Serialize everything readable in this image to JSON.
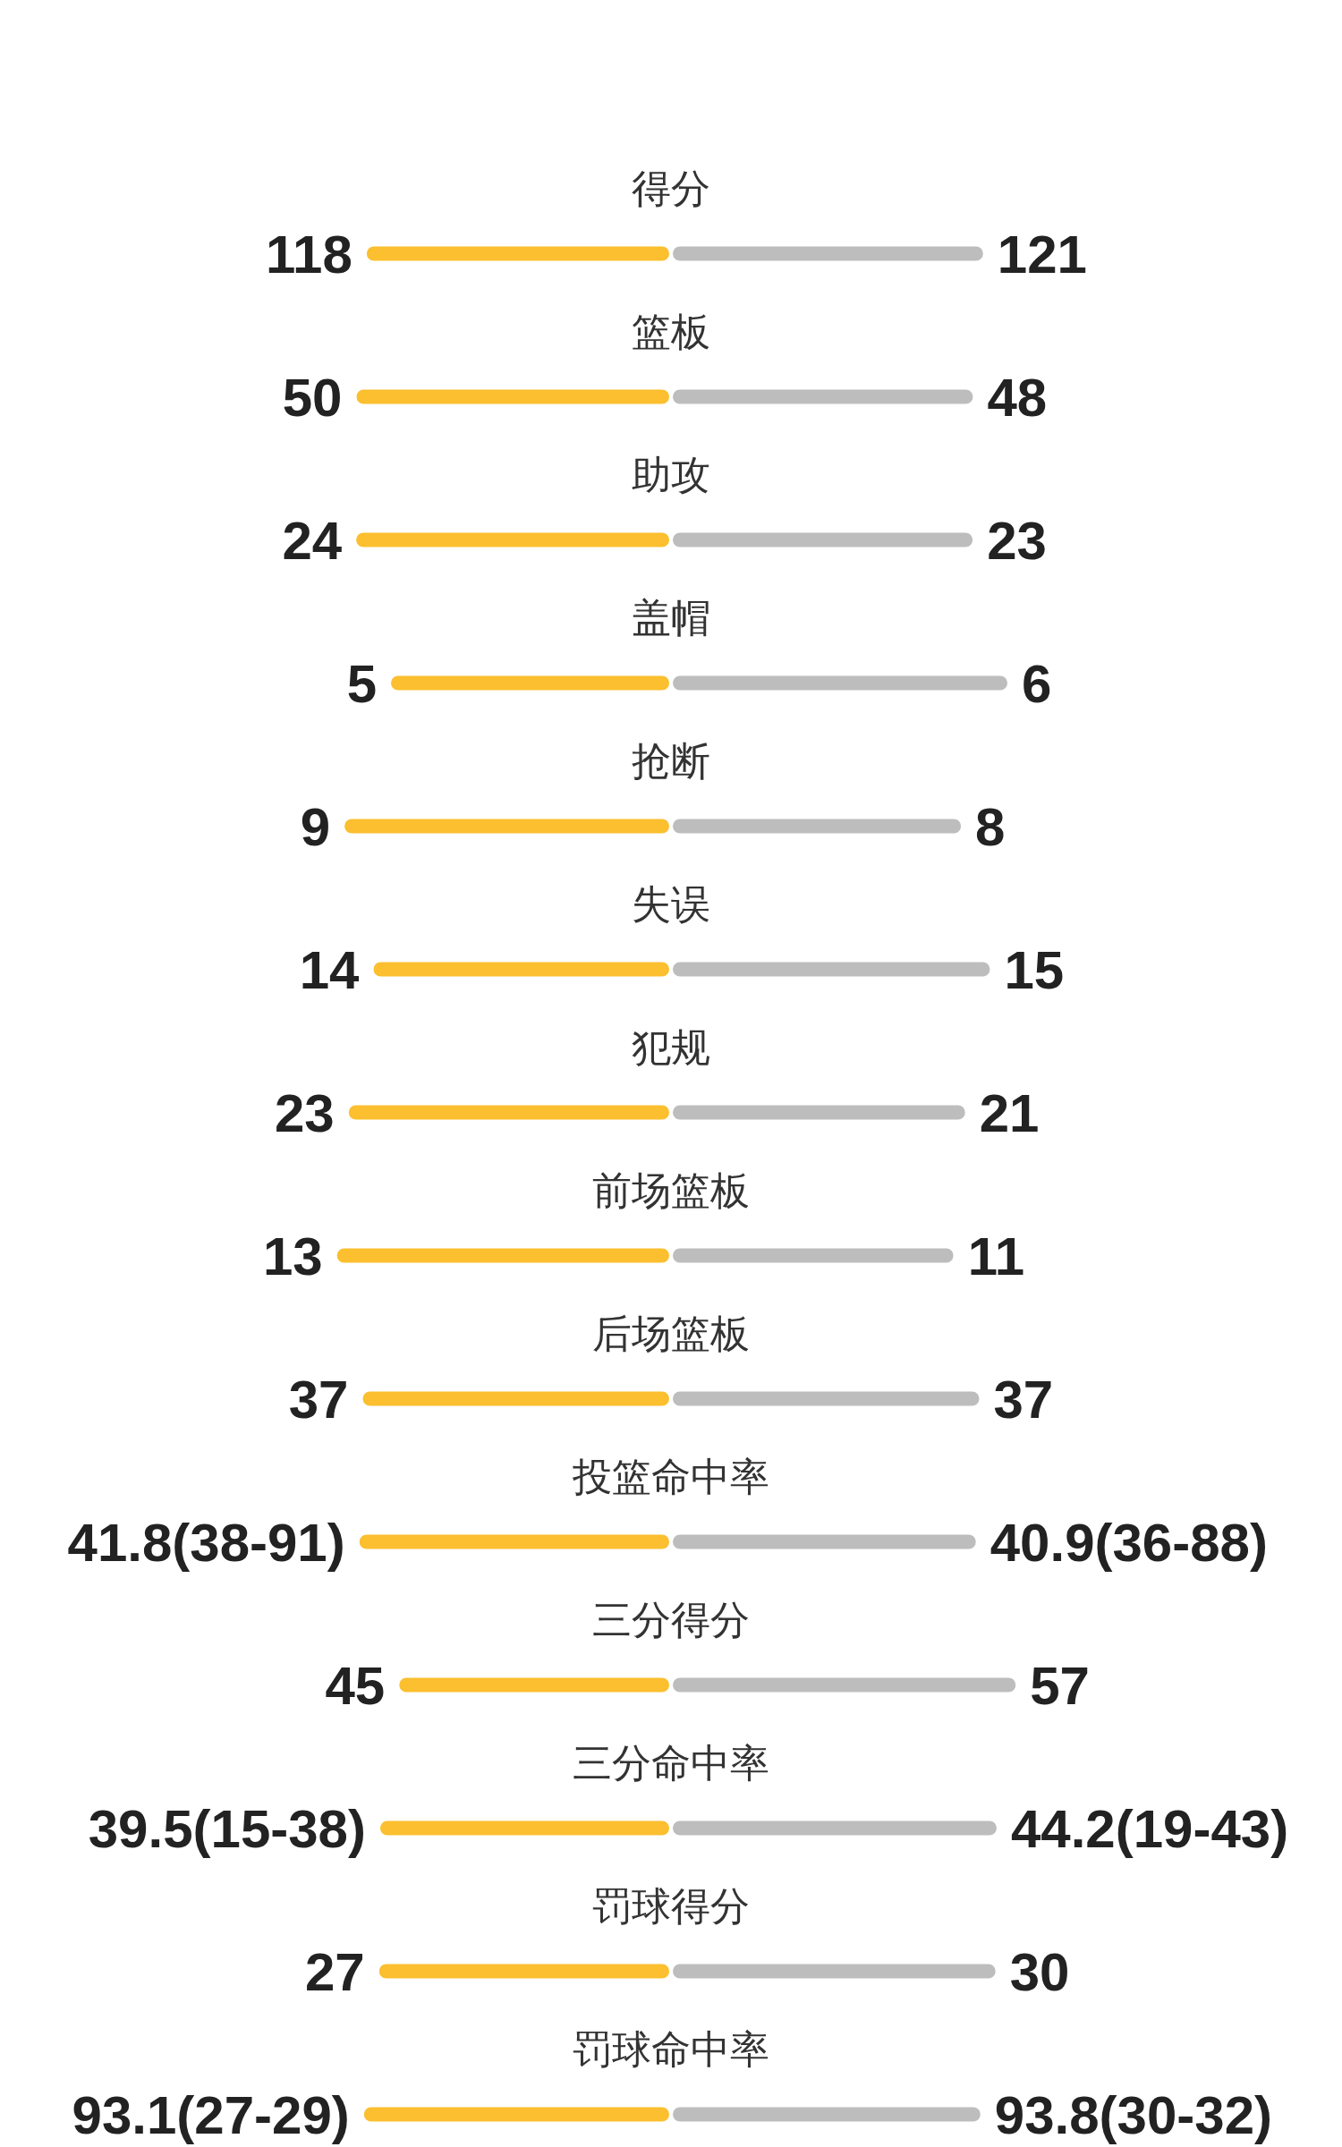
{
  "chart_data": [
    {
      "type": "bar",
      "orientation": "horizontal",
      "stacked": true,
      "categories": [
        "得分"
      ],
      "series": [
        {
          "color": "#fbbf2f",
          "values": [
            118
          ],
          "value_labels": [
            "118"
          ]
        },
        {
          "color": "#bdbdbd",
          "values": [
            121
          ],
          "value_labels": [
            "121"
          ]
        }
      ]
    },
    {
      "type": "bar",
      "orientation": "horizontal",
      "stacked": true,
      "categories": [
        "篮板"
      ],
      "series": [
        {
          "color": "#fbbf2f",
          "values": [
            50
          ],
          "value_labels": [
            "50"
          ]
        },
        {
          "color": "#bdbdbd",
          "values": [
            48
          ],
          "value_labels": [
            "48"
          ]
        }
      ]
    },
    {
      "type": "bar",
      "orientation": "horizontal",
      "stacked": true,
      "categories": [
        "助攻"
      ],
      "series": [
        {
          "color": "#fbbf2f",
          "values": [
            24
          ],
          "value_labels": [
            "24"
          ]
        },
        {
          "color": "#bdbdbd",
          "values": [
            23
          ],
          "value_labels": [
            "23"
          ]
        }
      ]
    },
    {
      "type": "bar",
      "orientation": "horizontal",
      "stacked": true,
      "categories": [
        "盖帽"
      ],
      "series": [
        {
          "color": "#fbbf2f",
          "values": [
            5
          ],
          "value_labels": [
            "5"
          ]
        },
        {
          "color": "#bdbdbd",
          "values": [
            6
          ],
          "value_labels": [
            "6"
          ]
        }
      ]
    },
    {
      "type": "bar",
      "orientation": "horizontal",
      "stacked": true,
      "categories": [
        "抢断"
      ],
      "series": [
        {
          "color": "#fbbf2f",
          "values": [
            9
          ],
          "value_labels": [
            "9"
          ]
        },
        {
          "color": "#bdbdbd",
          "values": [
            8
          ],
          "value_labels": [
            "8"
          ]
        }
      ]
    },
    {
      "type": "bar",
      "orientation": "horizontal",
      "stacked": true,
      "categories": [
        "失误"
      ],
      "series": [
        {
          "color": "#fbbf2f",
          "values": [
            14
          ],
          "value_labels": [
            "14"
          ]
        },
        {
          "color": "#bdbdbd",
          "values": [
            15
          ],
          "value_labels": [
            "15"
          ]
        }
      ]
    },
    {
      "type": "bar",
      "orientation": "horizontal",
      "stacked": true,
      "categories": [
        "犯规"
      ],
      "series": [
        {
          "color": "#fbbf2f",
          "values": [
            23
          ],
          "value_labels": [
            "23"
          ]
        },
        {
          "color": "#bdbdbd",
          "values": [
            21
          ],
          "value_labels": [
            "21"
          ]
        }
      ]
    },
    {
      "type": "bar",
      "orientation": "horizontal",
      "stacked": true,
      "categories": [
        "前场篮板"
      ],
      "series": [
        {
          "color": "#fbbf2f",
          "values": [
            13
          ],
          "value_labels": [
            "13"
          ]
        },
        {
          "color": "#bdbdbd",
          "values": [
            11
          ],
          "value_labels": [
            "11"
          ]
        }
      ]
    },
    {
      "type": "bar",
      "orientation": "horizontal",
      "stacked": true,
      "categories": [
        "后场篮板"
      ],
      "series": [
        {
          "color": "#fbbf2f",
          "values": [
            37
          ],
          "value_labels": [
            "37"
          ]
        },
        {
          "color": "#bdbdbd",
          "values": [
            37
          ],
          "value_labels": [
            "37"
          ]
        }
      ]
    },
    {
      "type": "bar",
      "orientation": "horizontal",
      "stacked": true,
      "categories": [
        "投篮命中率"
      ],
      "series": [
        {
          "color": "#fbbf2f",
          "values": [
            41.8
          ],
          "value_labels": [
            "41.8(38-91)"
          ]
        },
        {
          "color": "#bdbdbd",
          "values": [
            40.9
          ],
          "value_labels": [
            "40.9(36-88)"
          ]
        }
      ]
    },
    {
      "type": "bar",
      "orientation": "horizontal",
      "stacked": true,
      "categories": [
        "三分得分"
      ],
      "series": [
        {
          "color": "#fbbf2f",
          "values": [
            45
          ],
          "value_labels": [
            "45"
          ]
        },
        {
          "color": "#bdbdbd",
          "values": [
            57
          ],
          "value_labels": [
            "57"
          ]
        }
      ]
    },
    {
      "type": "bar",
      "orientation": "horizontal",
      "stacked": true,
      "categories": [
        "三分命中率"
      ],
      "series": [
        {
          "color": "#fbbf2f",
          "values": [
            39.5
          ],
          "value_labels": [
            "39.5(15-38)"
          ]
        },
        {
          "color": "#bdbdbd",
          "values": [
            44.2
          ],
          "value_labels": [
            "44.2(19-43)"
          ]
        }
      ]
    },
    {
      "type": "bar",
      "orientation": "horizontal",
      "stacked": true,
      "categories": [
        "罚球得分"
      ],
      "series": [
        {
          "color": "#fbbf2f",
          "values": [
            27
          ],
          "value_labels": [
            "27"
          ]
        },
        {
          "color": "#bdbdbd",
          "values": [
            30
          ],
          "value_labels": [
            "30"
          ]
        }
      ]
    },
    {
      "type": "bar",
      "orientation": "horizontal",
      "stacked": true,
      "categories": [
        "罚球命中率"
      ],
      "series": [
        {
          "color": "#fbbf2f",
          "values": [
            93.1
          ],
          "value_labels": [
            "93.1(27-29)"
          ]
        },
        {
          "color": "#bdbdbd",
          "values": [
            93.8
          ],
          "value_labels": [
            "93.8(30-32)"
          ]
        }
      ]
    }
  ]
}
